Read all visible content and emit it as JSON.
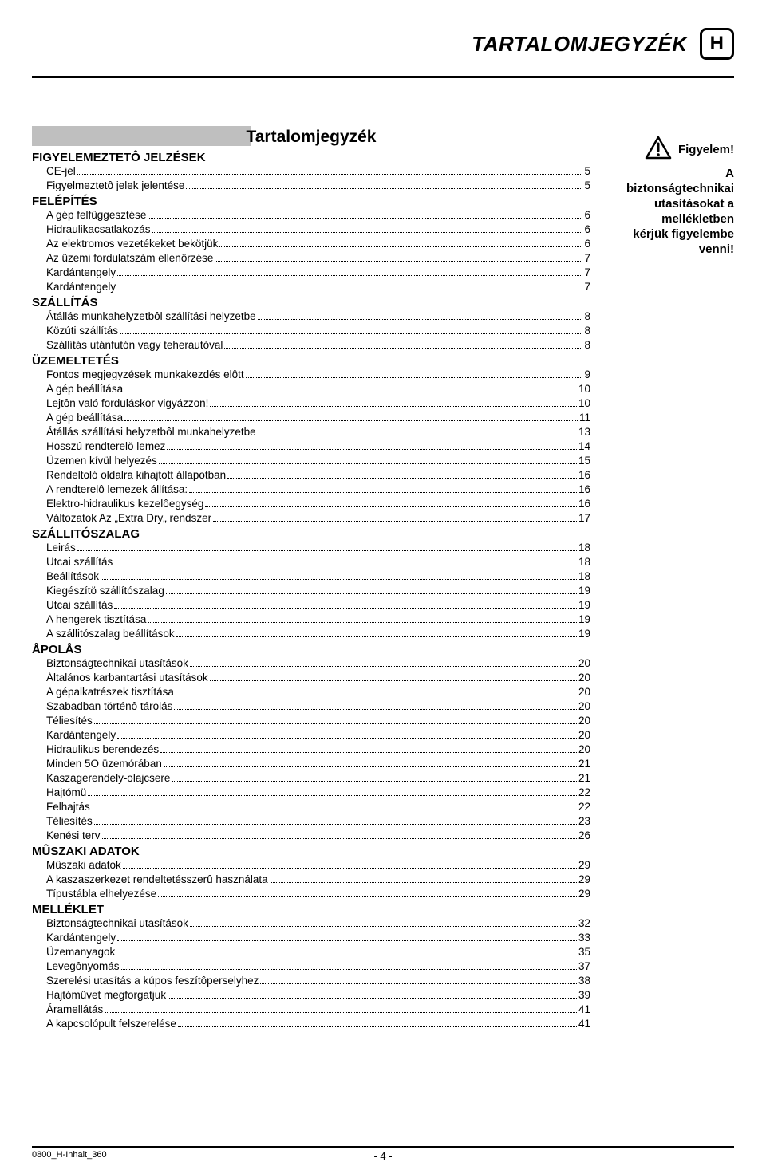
{
  "header": {
    "title": "TARTALOMJEGYZÉK",
    "lang": "H"
  },
  "toc_title": "Tartalomjegyzék",
  "sections": [
    {
      "title": "FIGYELEMEZTETÔ JELZÉSEK",
      "items": [
        {
          "label": "CE-jel",
          "page": "5"
        },
        {
          "label": "Figyelmeztetô jelek jelentése",
          "page": "5"
        }
      ]
    },
    {
      "title": "FELÉPÍTÉS",
      "items": [
        {
          "label": "A gép felfüggesztése",
          "page": "6"
        },
        {
          "label": "Hidraulikacsatlakozás",
          "page": "6"
        },
        {
          "label": "Az elektromos vezetékeket bekötjük",
          "page": "6"
        },
        {
          "label": "Az üzemi fordulatszám ellenôrzése ",
          "page": "7"
        },
        {
          "label": "Kardántengely",
          "page": "7"
        },
        {
          "label": "Kardántengely",
          "page": "7"
        }
      ]
    },
    {
      "title": "SZÁLLÍTÁS",
      "items": [
        {
          "label": "Átállás munkahelyzetbôl szállítási helyzetbe",
          "page": "8"
        },
        {
          "label": "Közúti szállítás",
          "page": "8"
        },
        {
          "label": "Szállítás utánfutón vagy teherautóval",
          "page": "8"
        }
      ]
    },
    {
      "title": "ÜZEMELTETÉS",
      "items": [
        {
          "label": "Fontos megjegyzések munkakezdés elôtt",
          "page": "9"
        },
        {
          "label": "A gép beállítása",
          "page": "10"
        },
        {
          "label": "Lejtôn való forduláskor vigyázzon!",
          "page": "10"
        },
        {
          "label": "A gép beállítása",
          "page": "11"
        },
        {
          "label": "Átállás szállítási helyzetbôl munkahelyzetbe",
          "page": "13"
        },
        {
          "label": "Hosszú rendterelö lemez",
          "page": "14"
        },
        {
          "label": "Üzemen kívül helyezés",
          "page": "15"
        },
        {
          "label": "Rendeltoló oldalra kihajtott állapotban",
          "page": "16"
        },
        {
          "label": "A rendterelô lemezek állítása:",
          "page": "16"
        },
        {
          "label": "Elektro-hidraulikus kezelôegység",
          "page": "16"
        },
        {
          "label": "Változatok Az „Extra Dry„ rendszer",
          "page": "17"
        }
      ]
    },
    {
      "title": "SZÁLLITÓSZALAG",
      "items": [
        {
          "label": "Leirás",
          "page": "18"
        },
        {
          "label": "Utcai szállítás",
          "page": "18"
        },
        {
          "label": "Beállítások",
          "page": "18"
        },
        {
          "label": "Kiegészítö szállítószalag",
          "page": "19"
        },
        {
          "label": "Utcai szállítás",
          "page": "19"
        },
        {
          "label": "A hengerek tisztítása",
          "page": "19"
        },
        {
          "label": "A szállitószalag beállítások",
          "page": "19"
        }
      ]
    },
    {
      "title": "ÅPOLÅS",
      "items": [
        {
          "label": "Biztonságtechnikai utasítások",
          "page": "20"
        },
        {
          "label": "Általános karbantartási utasítások",
          "page": "20"
        },
        {
          "label": "A gépalkatrészek tisztítása",
          "page": "20"
        },
        {
          "label": "Szabadban történô tárolás",
          "page": "20"
        },
        {
          "label": "Téliesítés",
          "page": "20"
        },
        {
          "label": "Kardántengely",
          "page": "20"
        },
        {
          "label": "Hidraulikus berendezés",
          "page": "20"
        },
        {
          "label": "Minden 5O üzemórában",
          "page": "21"
        },
        {
          "label": "Kaszagerendely-olajcsere",
          "page": "21"
        },
        {
          "label": "Hajtómü",
          "page": "22"
        },
        {
          "label": "Felhajtás",
          "page": "22"
        },
        {
          "label": "Téliesítés",
          "page": "23"
        },
        {
          "label": "Kenési terv",
          "page": "26"
        }
      ]
    },
    {
      "title": "MÛSZAKI ADATOK",
      "items": [
        {
          "label": "Mûszaki adatok",
          "page": "29"
        },
        {
          "label": "A kaszaszerkezet rendeltetésszerû használata",
          "page": "29"
        },
        {
          "label": "Típustábla elhelyezése",
          "page": "29"
        }
      ]
    },
    {
      "title": "MELLÉKLET",
      "items": [
        {
          "label": "Biztonságtechnikai utasítások",
          "page": "32"
        },
        {
          "label": "Kardántengely",
          "page": "33"
        },
        {
          "label": "Üzemanyagok",
          "page": "35"
        },
        {
          "label": "Levegônyomás",
          "page": "37"
        },
        {
          "label": "Szerelési utasítás a kúpos feszítôperselyhez",
          "page": "38"
        },
        {
          "label": "Hajtóművet megforgatjuk",
          "page": "39"
        },
        {
          "label": "Áramellátás",
          "page": "41"
        },
        {
          "label": "A kapcsolópult felszerelése",
          "page": "41"
        }
      ]
    }
  ],
  "sidebar": {
    "attention": "Figyelem!",
    "text_lines": [
      "A",
      "biztonságtechnikai",
      "utasításokat a",
      "mellékletben",
      "kérjük figyelembe",
      "venni!"
    ]
  },
  "footer": {
    "left": "0800_H-Inhalt_360",
    "center": "- 4 -"
  },
  "colors": {
    "background": "#ffffff",
    "text": "#000000",
    "gray_box": "#bfbfbf"
  }
}
